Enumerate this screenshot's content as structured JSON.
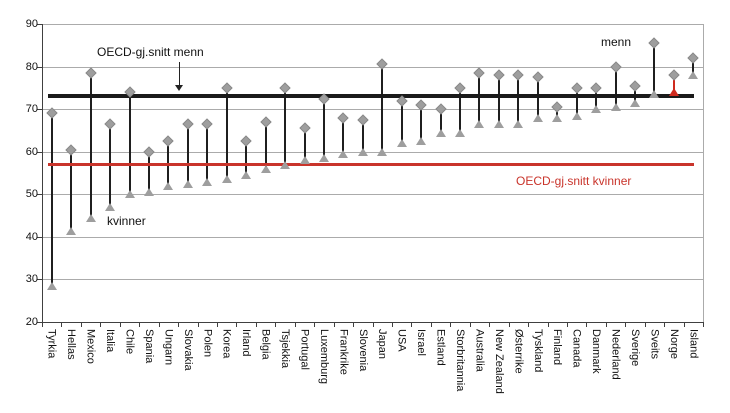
{
  "colors": {
    "marker": "#9e9e9e",
    "marker_border": "#8a8a8a",
    "connector": "#1f1f1f",
    "menn_line": "#1a1a1a",
    "kvinner_line": "#c9342b",
    "highlight": "#cf2a1e",
    "gridline": "#ababab",
    "axis": "#404040",
    "text": "#111111"
  },
  "chart_data": {
    "type": "dumbbell",
    "title": "",
    "xlabel": "",
    "ylabel": "",
    "ylim": [
      20,
      90
    ],
    "yticks": [
      20,
      30,
      40,
      50,
      60,
      70,
      80,
      90
    ],
    "grid": true,
    "legend_position": "none",
    "categories": [
      "Tyrkia",
      "Hellas",
      "Mexico",
      "Italia",
      "Chile",
      "Spania",
      "Ungarn",
      "Slovakia",
      "Polen",
      "Korea",
      "Irland",
      "Belgia",
      "Tsjekkia",
      "Portugal",
      "Luxemburg",
      "Frankrike",
      "Slovenia",
      "Japan",
      "USA",
      "Israel",
      "Estland",
      "Storbritannia",
      "Australia",
      "New Zealand",
      "Østerrike",
      "Tyskland",
      "Finland",
      "Canada",
      "Danmark",
      "Nederland",
      "Sverige",
      "Sveits",
      "Norge",
      "Island"
    ],
    "series": [
      {
        "name": "menn",
        "marker": "diamond",
        "values": [
          69,
          60.5,
          78.5,
          66.5,
          74,
          60,
          62.5,
          66.5,
          66.5,
          75,
          62.5,
          67,
          75,
          65.5,
          72.5,
          68,
          67.5,
          80.5,
          72,
          71,
          70,
          75,
          78.5,
          78,
          78,
          77.5,
          70.5,
          75,
          75,
          80,
          75.5,
          85.5,
          78,
          82
        ]
      },
      {
        "name": "kvinner",
        "marker": "triangle",
        "values": [
          28.5,
          41.5,
          44.5,
          47,
          50,
          50.5,
          52,
          52.5,
          53,
          53.5,
          54.5,
          56,
          57,
          58,
          58.5,
          59.5,
          60,
          60,
          62,
          62.5,
          64.5,
          64.5,
          66.5,
          66.5,
          66.5,
          68,
          68,
          68.5,
          70,
          70.5,
          71.5,
          73.5,
          74,
          78
        ]
      }
    ],
    "reference_lines": [
      {
        "label": "OECD-gj.snitt menn",
        "value": 73,
        "color": "#1a1a1a"
      },
      {
        "label": "OECD-gj.snitt kvinner",
        "value": 57,
        "color": "#c9342b"
      }
    ],
    "highlight": {
      "category": "Norge",
      "color": "#cf2a1e"
    }
  }
}
